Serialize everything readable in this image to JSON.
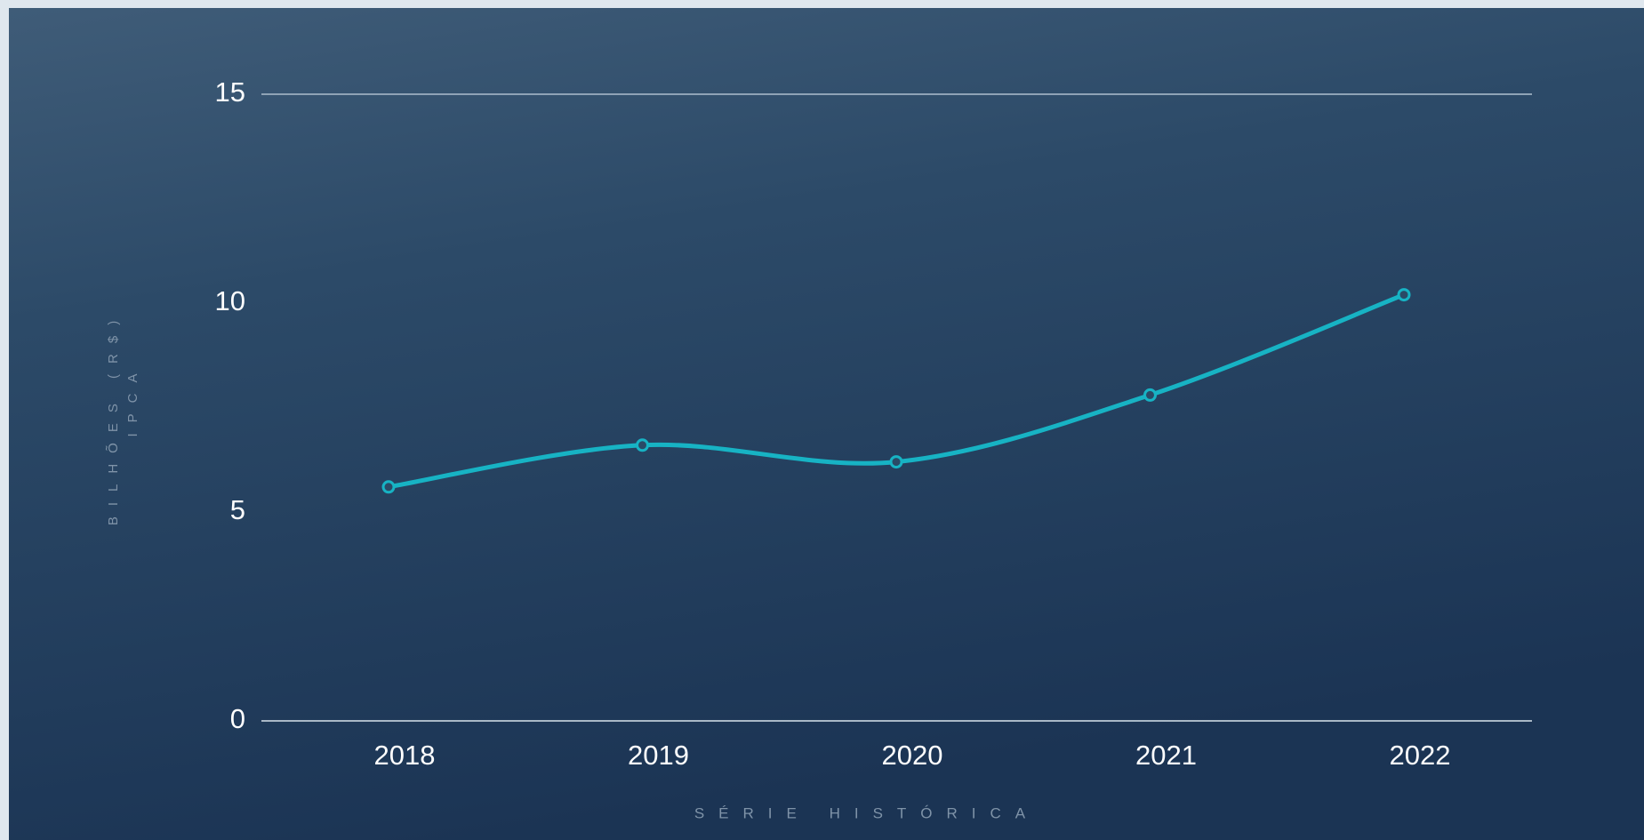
{
  "chart_data": {
    "type": "line",
    "y_label": [
      "BILHÕES (R$)",
      "IPCA"
    ],
    "x_label": "SÉRIE HISTÓRICA",
    "categories": [
      "2018",
      "2019",
      "2020",
      "2021",
      "2022"
    ],
    "series": [
      {
        "name": "Bilhões (R$)",
        "color": "#17b3c4",
        "values": [
          5.6,
          6.6,
          6.2,
          7.8,
          10.2
        ]
      }
    ],
    "ylim": [
      0,
      15
    ],
    "yticks": [
      0,
      5,
      10,
      15
    ],
    "grid": false
  }
}
